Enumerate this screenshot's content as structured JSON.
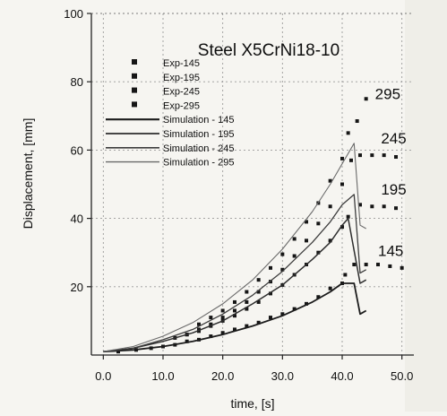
{
  "chart_data": {
    "type": "line",
    "title": "Steel X5CrNi18-10",
    "xlabel": "time, [s]",
    "ylabel": "Displacement, [mm]",
    "xlim": [
      -2,
      52
    ],
    "ylim": [
      0,
      100
    ],
    "xticks": [
      "0.0",
      "10.0",
      "20.0",
      "30.0",
      "40.0",
      "50.0"
    ],
    "yticks": [
      "20",
      "40",
      "60",
      "80",
      "100"
    ],
    "grid": true,
    "legend_position": "top-left",
    "series": [
      {
        "name": "Exp-145",
        "kind": "scatter",
        "x": [
          2.5,
          5.5,
          8,
          10,
          12,
          14,
          16,
          18,
          20,
          22,
          24,
          26,
          28,
          30,
          32,
          34,
          36,
          38,
          40,
          40.5,
          42,
          44,
          46,
          48,
          50
        ],
        "y": [
          1,
          1.5,
          2,
          2.5,
          3,
          4,
          4.5,
          5.5,
          6.5,
          7.5,
          8.5,
          9.5,
          11,
          12,
          13.5,
          15,
          17,
          19.5,
          21,
          23.5,
          26.5,
          26.5,
          26.5,
          26,
          25.5
        ]
      },
      {
        "name": "Exp-195",
        "kind": "scatter",
        "x": [
          12,
          14,
          16,
          18,
          20,
          22,
          24,
          26,
          28,
          30,
          32,
          34,
          36,
          38,
          40,
          41,
          43,
          45,
          47,
          49
        ],
        "y": [
          5,
          6,
          7,
          8.5,
          10,
          11.5,
          13.5,
          15.5,
          18,
          20.5,
          23.5,
          26.5,
          30,
          33.5,
          37.5,
          40.5,
          44,
          43.5,
          43.5,
          43
        ]
      },
      {
        "name": "Exp-245",
        "kind": "scatter",
        "x": [
          14,
          16,
          18,
          20,
          22,
          24,
          26,
          28,
          30,
          32,
          34,
          36,
          38,
          40,
          41.5,
          43,
          45,
          47,
          49
        ],
        "y": [
          6,
          7.5,
          9,
          11,
          13,
          15.5,
          18.5,
          21.5,
          25,
          29,
          33.5,
          38.5,
          43.5,
          50,
          57,
          58.5,
          58.5,
          58.5,
          58
        ]
      },
      {
        "name": "Exp-295",
        "kind": "scatter",
        "x": [
          16,
          18,
          20,
          22,
          24,
          26,
          28,
          30,
          32,
          34,
          36,
          38,
          40,
          41,
          42.5,
          44
        ],
        "y": [
          9,
          11,
          13,
          15.5,
          18.5,
          22,
          25.5,
          29.5,
          34,
          39,
          44.5,
          51,
          57.5,
          65,
          68.5,
          75
        ]
      },
      {
        "name": "Simulation - 145",
        "kind": "line",
        "x": [
          0,
          5,
          10,
          15,
          20,
          25,
          30,
          35,
          38,
          40,
          42,
          43,
          44
        ],
        "y": [
          1,
          1.5,
          2.5,
          4,
          6,
          8.5,
          11.5,
          15.5,
          18.5,
          21,
          21,
          12,
          13
        ]
      },
      {
        "name": "Simulation - 195",
        "kind": "line",
        "x": [
          0,
          5,
          10,
          15,
          20,
          25,
          30,
          35,
          38,
          40,
          41,
          43,
          44
        ],
        "y": [
          1,
          2,
          4,
          6.5,
          10,
          15,
          20.5,
          28,
          33,
          38,
          40,
          21,
          22
        ]
      },
      {
        "name": "Simulation - 245",
        "kind": "line",
        "x": [
          0,
          5,
          10,
          15,
          20,
          25,
          30,
          35,
          38,
          40,
          42,
          43,
          44
        ],
        "y": [
          1,
          2,
          4.5,
          7.5,
          12,
          17.5,
          24.5,
          33,
          39,
          44,
          47,
          24,
          25
        ]
      },
      {
        "name": "Simulation - 295",
        "kind": "line",
        "x": [
          0,
          5,
          10,
          15,
          20,
          25,
          30,
          35,
          38,
          40,
          42,
          43,
          44
        ],
        "y": [
          1,
          2.5,
          5.5,
          9.5,
          15,
          22,
          31,
          42,
          50,
          56,
          62,
          38,
          37
        ]
      }
    ],
    "annotations": [
      {
        "text": "295",
        "x": 45.5,
        "y": 75
      },
      {
        "text": "245",
        "x": 46.5,
        "y": 62
      },
      {
        "text": "195",
        "x": 46.5,
        "y": 47
      },
      {
        "text": "145",
        "x": 46,
        "y": 29
      }
    ]
  }
}
